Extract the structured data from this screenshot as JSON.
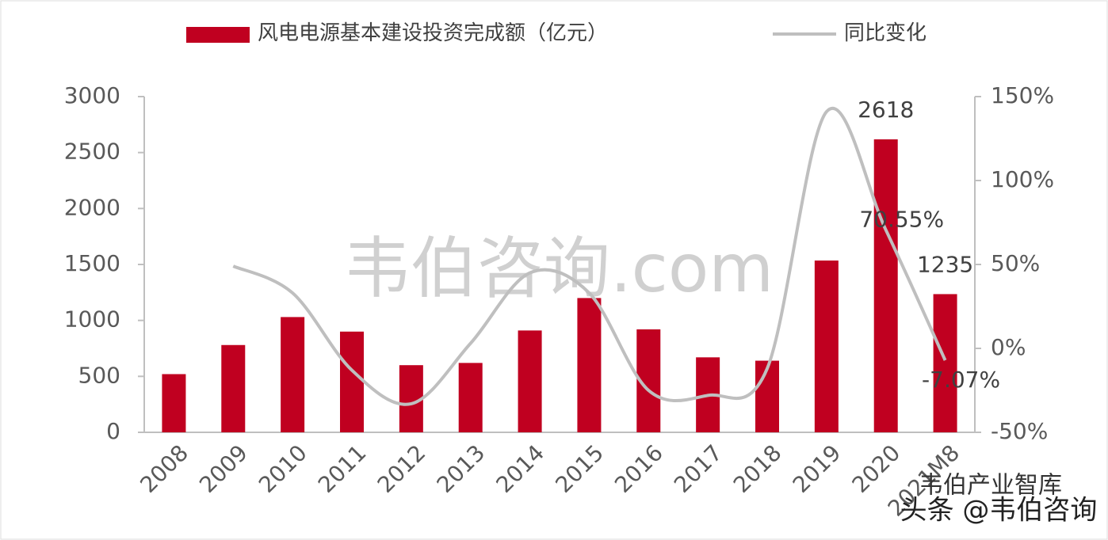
{
  "chart_data": {
    "type": "bar-line",
    "categories": [
      "2008",
      "2009",
      "2010",
      "2011",
      "2012",
      "2013",
      "2014",
      "2015",
      "2016",
      "2017",
      "2018",
      "2019",
      "2020",
      "2021M8"
    ],
    "series": [
      {
        "name": "风电电源基本建设投资完成额（亿元）",
        "type": "bar",
        "color": "#c00020",
        "values": [
          520,
          780,
          1030,
          900,
          600,
          620,
          910,
          1200,
          920,
          670,
          640,
          1535,
          2618,
          1235
        ],
        "value_labels": [
          null,
          null,
          null,
          null,
          null,
          null,
          null,
          null,
          null,
          null,
          null,
          null,
          "2618",
          "1235"
        ]
      },
      {
        "name": "同比变化",
        "type": "line",
        "axis": "y2",
        "color": "#bfbfbf",
        "smooth": true,
        "values": [
          null,
          49,
          33,
          -13,
          -33,
          3,
          45,
          33,
          -25,
          -28,
          -12,
          141,
          70.55,
          -7.07
        ],
        "value_labels": [
          null,
          null,
          null,
          null,
          null,
          null,
          null,
          null,
          null,
          null,
          null,
          null,
          "70.55%",
          "-7.07%"
        ]
      }
    ],
    "ylim": [
      0,
      3000
    ],
    "yticks": [
      0,
      500,
      1000,
      1500,
      2000,
      2500,
      3000
    ],
    "y2lim": [
      -50,
      150
    ],
    "y2ticks": [
      {
        "value": -50,
        "label": "-50%"
      },
      {
        "value": 0,
        "label": "0%"
      },
      {
        "value": 50,
        "label": "50%"
      },
      {
        "value": 100,
        "label": "100%"
      },
      {
        "value": 150,
        "label": "150%"
      }
    ],
    "grid": false,
    "legend": "top",
    "watermarks": [
      "韦伯咨询.com",
      "韦伯产业智库",
      "头条 @韦伯咨询"
    ]
  }
}
